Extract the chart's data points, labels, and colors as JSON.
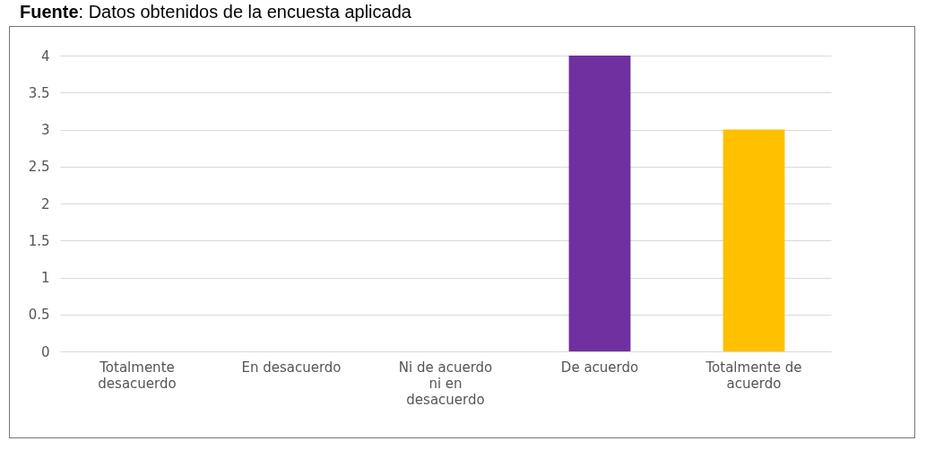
{
  "chart_data": {
    "type": "bar",
    "annotations": [
      "Fuente: Datos obtenidos de la encuesta aplicada"
    ],
    "categories": [
      "Totalmente desacuerdo",
      "En desacuerdo",
      "Ni de acuerdo ni en desacuerdo",
      "De acuerdo",
      "Totalmente de acuerdo"
    ],
    "values": [
      0,
      0,
      0,
      4,
      3
    ],
    "colors": [
      "#77933c",
      "#4cc44c",
      "#0e86b8",
      "#7030a0",
      "#ffc000"
    ],
    "ylim": [
      0,
      4
    ],
    "yticks": [
      0,
      0.5,
      1,
      1.5,
      2,
      2.5,
      3,
      3.5,
      4
    ],
    "grid": "y"
  }
}
